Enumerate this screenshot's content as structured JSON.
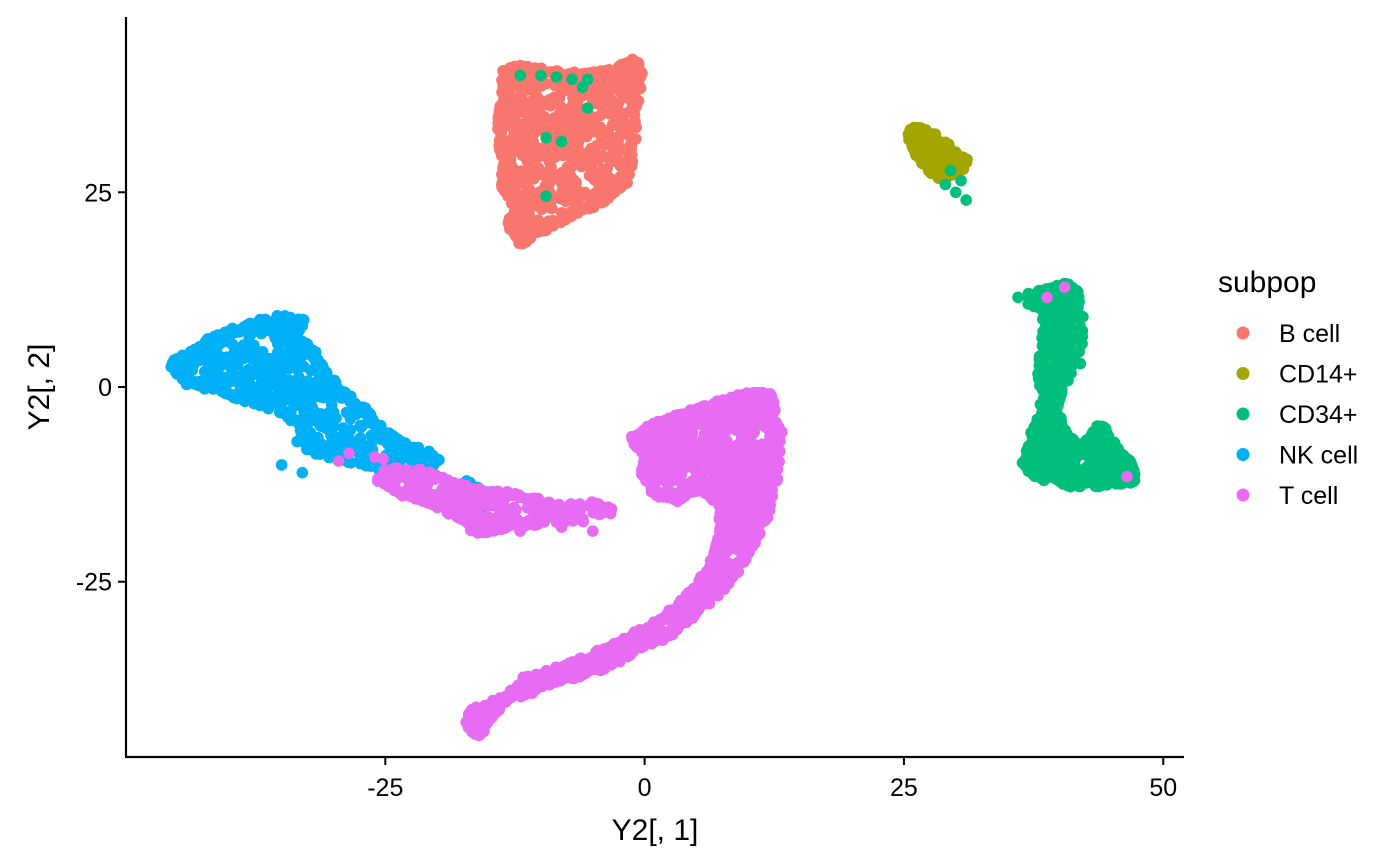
{
  "chart_data": {
    "type": "scatter",
    "title": "",
    "xlabel": "Y2[, 1]",
    "ylabel": "Y2[, 2]",
    "xlim": [
      -50,
      52
    ],
    "ylim": [
      -47.5,
      47.5
    ],
    "x_ticks": [
      -25,
      0,
      25,
      50
    ],
    "y_ticks": [
      25,
      0,
      -25
    ],
    "x_tick_labels": [
      "-25",
      "0",
      "25",
      "50"
    ],
    "y_tick_labels": [
      "25",
      "0",
      "-25"
    ],
    "grid": false,
    "legend": {
      "title": "subpop",
      "position": "right"
    },
    "series": [
      {
        "name": "B cell",
        "color": "#F8766D",
        "clusters": [
          {
            "shape": "polygon",
            "n": 900,
            "poly": [
              [
                -13.5,
                40.5
              ],
              [
                -12,
                41
              ],
              [
                -6,
                40
              ],
              [
                -3,
                40.5
              ],
              [
                -1,
                42
              ],
              [
                -0.5,
                40
              ],
              [
                -1.5,
                27
              ],
              [
                -4,
                24
              ],
              [
                -9,
                21
              ],
              [
                -12,
                18.5
              ],
              [
                -13,
                21
              ],
              [
                -12,
                23
              ],
              [
                -13.5,
                25.5
              ],
              [
                -13.5,
                29
              ],
              [
                -14,
                33
              ],
              [
                -13.5,
                37
              ]
            ]
          }
        ]
      },
      {
        "name": "CD14+",
        "color": "#A3A500",
        "clusters": [
          {
            "shape": "polygon",
            "n": 300,
            "poly": [
              [
                25.5,
                33
              ],
              [
                27,
                33
              ],
              [
                29,
                31
              ],
              [
                31,
                29
              ],
              [
                30,
                27.5
              ],
              [
                28.5,
                27
              ],
              [
                27.5,
                28
              ],
              [
                26,
                30.5
              ]
            ]
          }
        ]
      },
      {
        "name": "CD34+",
        "color": "#00BF7D",
        "clusters": [
          {
            "shape": "polygon",
            "n": 900,
            "poly": [
              [
                38,
                12
              ],
              [
                39,
                12.5
              ],
              [
                40.5,
                13
              ],
              [
                42,
                12
              ],
              [
                42,
                6
              ],
              [
                41,
                2
              ],
              [
                40,
                0
              ],
              [
                39.5,
                -3
              ],
              [
                40.5,
                -6
              ],
              [
                42,
                -8
              ],
              [
                44,
                -5
              ],
              [
                45.5,
                -8
              ],
              [
                47,
                -10
              ],
              [
                47,
                -12
              ],
              [
                44,
                -12.5
              ],
              [
                41,
                -12.5
              ],
              [
                38,
                -11.5
              ],
              [
                36.5,
                -10
              ],
              [
                37.5,
                -6
              ],
              [
                38.5,
                -3
              ],
              [
                38.2,
                2
              ],
              [
                38.5,
                6
              ],
              [
                38.5,
                10
              ],
              [
                37,
                11
              ]
            ]
          },
          {
            "shape": "points",
            "pts": [
              [
                -12,
                40
              ],
              [
                -10,
                40
              ],
              [
                -8.5,
                39.8
              ],
              [
                -7,
                39.5
              ],
              [
                -6,
                38.5
              ],
              [
                -5.5,
                39.5
              ],
              [
                -5.5,
                35.8
              ],
              [
                -9.5,
                32
              ],
              [
                -8,
                31.5
              ],
              [
                -9.5,
                24.5
              ],
              [
                29,
                26
              ],
              [
                30,
                25
              ],
              [
                31,
                24
              ],
              [
                30.5,
                26.5
              ],
              [
                29.5,
                27.8
              ],
              [
                36,
                11.5
              ],
              [
                37,
                12
              ],
              [
                42,
                3
              ]
            ]
          }
        ]
      },
      {
        "name": "NK cell",
        "color": "#00B0F6",
        "clusters": [
          {
            "shape": "polygon",
            "n": 700,
            "poly": [
              [
                -45.5,
                3
              ],
              [
                -43,
                5
              ],
              [
                -41,
                6.5
              ],
              [
                -38,
                8
              ],
              [
                -35,
                9
              ],
              [
                -33,
                8.5
              ],
              [
                -34,
                6.5
              ],
              [
                -32,
                4.5
              ],
              [
                -31,
                2
              ],
              [
                -29,
                -1
              ],
              [
                -27,
                -3
              ],
              [
                -25,
                -6
              ],
              [
                -23,
                -7.5
              ],
              [
                -20,
                -9
              ],
              [
                -21,
                -11
              ],
              [
                -24,
                -11
              ],
              [
                -27,
                -10
              ],
              [
                -30,
                -9
              ],
              [
                -32.5,
                -8
              ],
              [
                -33,
                -5
              ],
              [
                -35,
                -3
              ],
              [
                -37,
                -2
              ],
              [
                -40,
                -1
              ],
              [
                -44,
                0.5
              ]
            ]
          },
          {
            "shape": "polygon",
            "n": 60,
            "poly": [
              [
                -18,
                -13
              ],
              [
                -17,
                -12
              ],
              [
                -15,
                -14
              ],
              [
                -16,
                -16.5
              ],
              [
                -18,
                -15
              ]
            ]
          },
          {
            "shape": "points",
            "pts": [
              [
                -33,
                -11
              ],
              [
                -35,
                -10
              ],
              [
                -33.5,
                -7
              ],
              [
                -29,
                -8.5
              ],
              [
                -24,
                -10
              ],
              [
                -22,
                -11.5
              ],
              [
                -27.5,
                -9.5
              ]
            ]
          }
        ]
      },
      {
        "name": "T cell",
        "color": "#E76BF3",
        "clusters": [
          {
            "shape": "polygon",
            "n": 1500,
            "poly": [
              [
                -16,
                -44.5
              ],
              [
                -17,
                -43.5
              ],
              [
                -16.5,
                -41.5
              ],
              [
                -12,
                -39.5
              ],
              [
                -8,
                -37.5
              ],
              [
                -4,
                -36
              ],
              [
                -1,
                -34
              ],
              [
                2,
                -32
              ],
              [
                4,
                -30
              ],
              [
                6,
                -27.5
              ],
              [
                8,
                -25
              ],
              [
                10,
                -21
              ],
              [
                11.5,
                -17
              ],
              [
                12.5,
                -12
              ],
              [
                13,
                -6
              ],
              [
                12,
                -1
              ],
              [
                10,
                -1
              ],
              [
                7,
                -2
              ],
              [
                4,
                -3.5
              ],
              [
                1,
                -5
              ],
              [
                -1,
                -6.5
              ],
              [
                0,
                -8.5
              ],
              [
                0,
                -11
              ],
              [
                1,
                -13.5
              ],
              [
                3,
                -14.5
              ],
              [
                5.5,
                -13
              ],
              [
                7.5,
                -15
              ],
              [
                7.5,
                -19
              ],
              [
                6,
                -24
              ],
              [
                3.5,
                -28
              ],
              [
                1,
                -30.5
              ],
              [
                -3,
                -33
              ],
              [
                -7,
                -35.5
              ],
              [
                -11.5,
                -37.5
              ],
              [
                -14,
                -41
              ]
            ]
          },
          {
            "shape": "polygon",
            "n": 400,
            "poly": [
              [
                -25,
                -11
              ],
              [
                -23,
                -10.5
              ],
              [
                -20,
                -11.5
              ],
              [
                -17,
                -13
              ],
              [
                -14,
                -13.5
              ],
              [
                -11,
                -14.5
              ],
              [
                -9,
                -15
              ],
              [
                -5,
                -15
              ],
              [
                -3,
                -16
              ],
              [
                -6,
                -17
              ],
              [
                -10,
                -17.5
              ],
              [
                -14,
                -18
              ],
              [
                -16,
                -19
              ],
              [
                -18,
                -16.5
              ],
              [
                -21,
                -14.5
              ],
              [
                -24,
                -13.5
              ],
              [
                -25.5,
                -12
              ]
            ]
          },
          {
            "shape": "points",
            "pts": [
              [
                -29.5,
                -9.5
              ],
              [
                -28.5,
                -8.5
              ],
              [
                -26,
                -9
              ],
              [
                -25.2,
                -9.2
              ],
              [
                38.8,
                11.5
              ],
              [
                40.5,
                12.8
              ],
              [
                46.5,
                -11.5
              ],
              [
                -5,
                -18.5
              ],
              [
                -8,
                -18
              ],
              [
                -12,
                -18.5
              ]
            ]
          }
        ]
      }
    ]
  }
}
